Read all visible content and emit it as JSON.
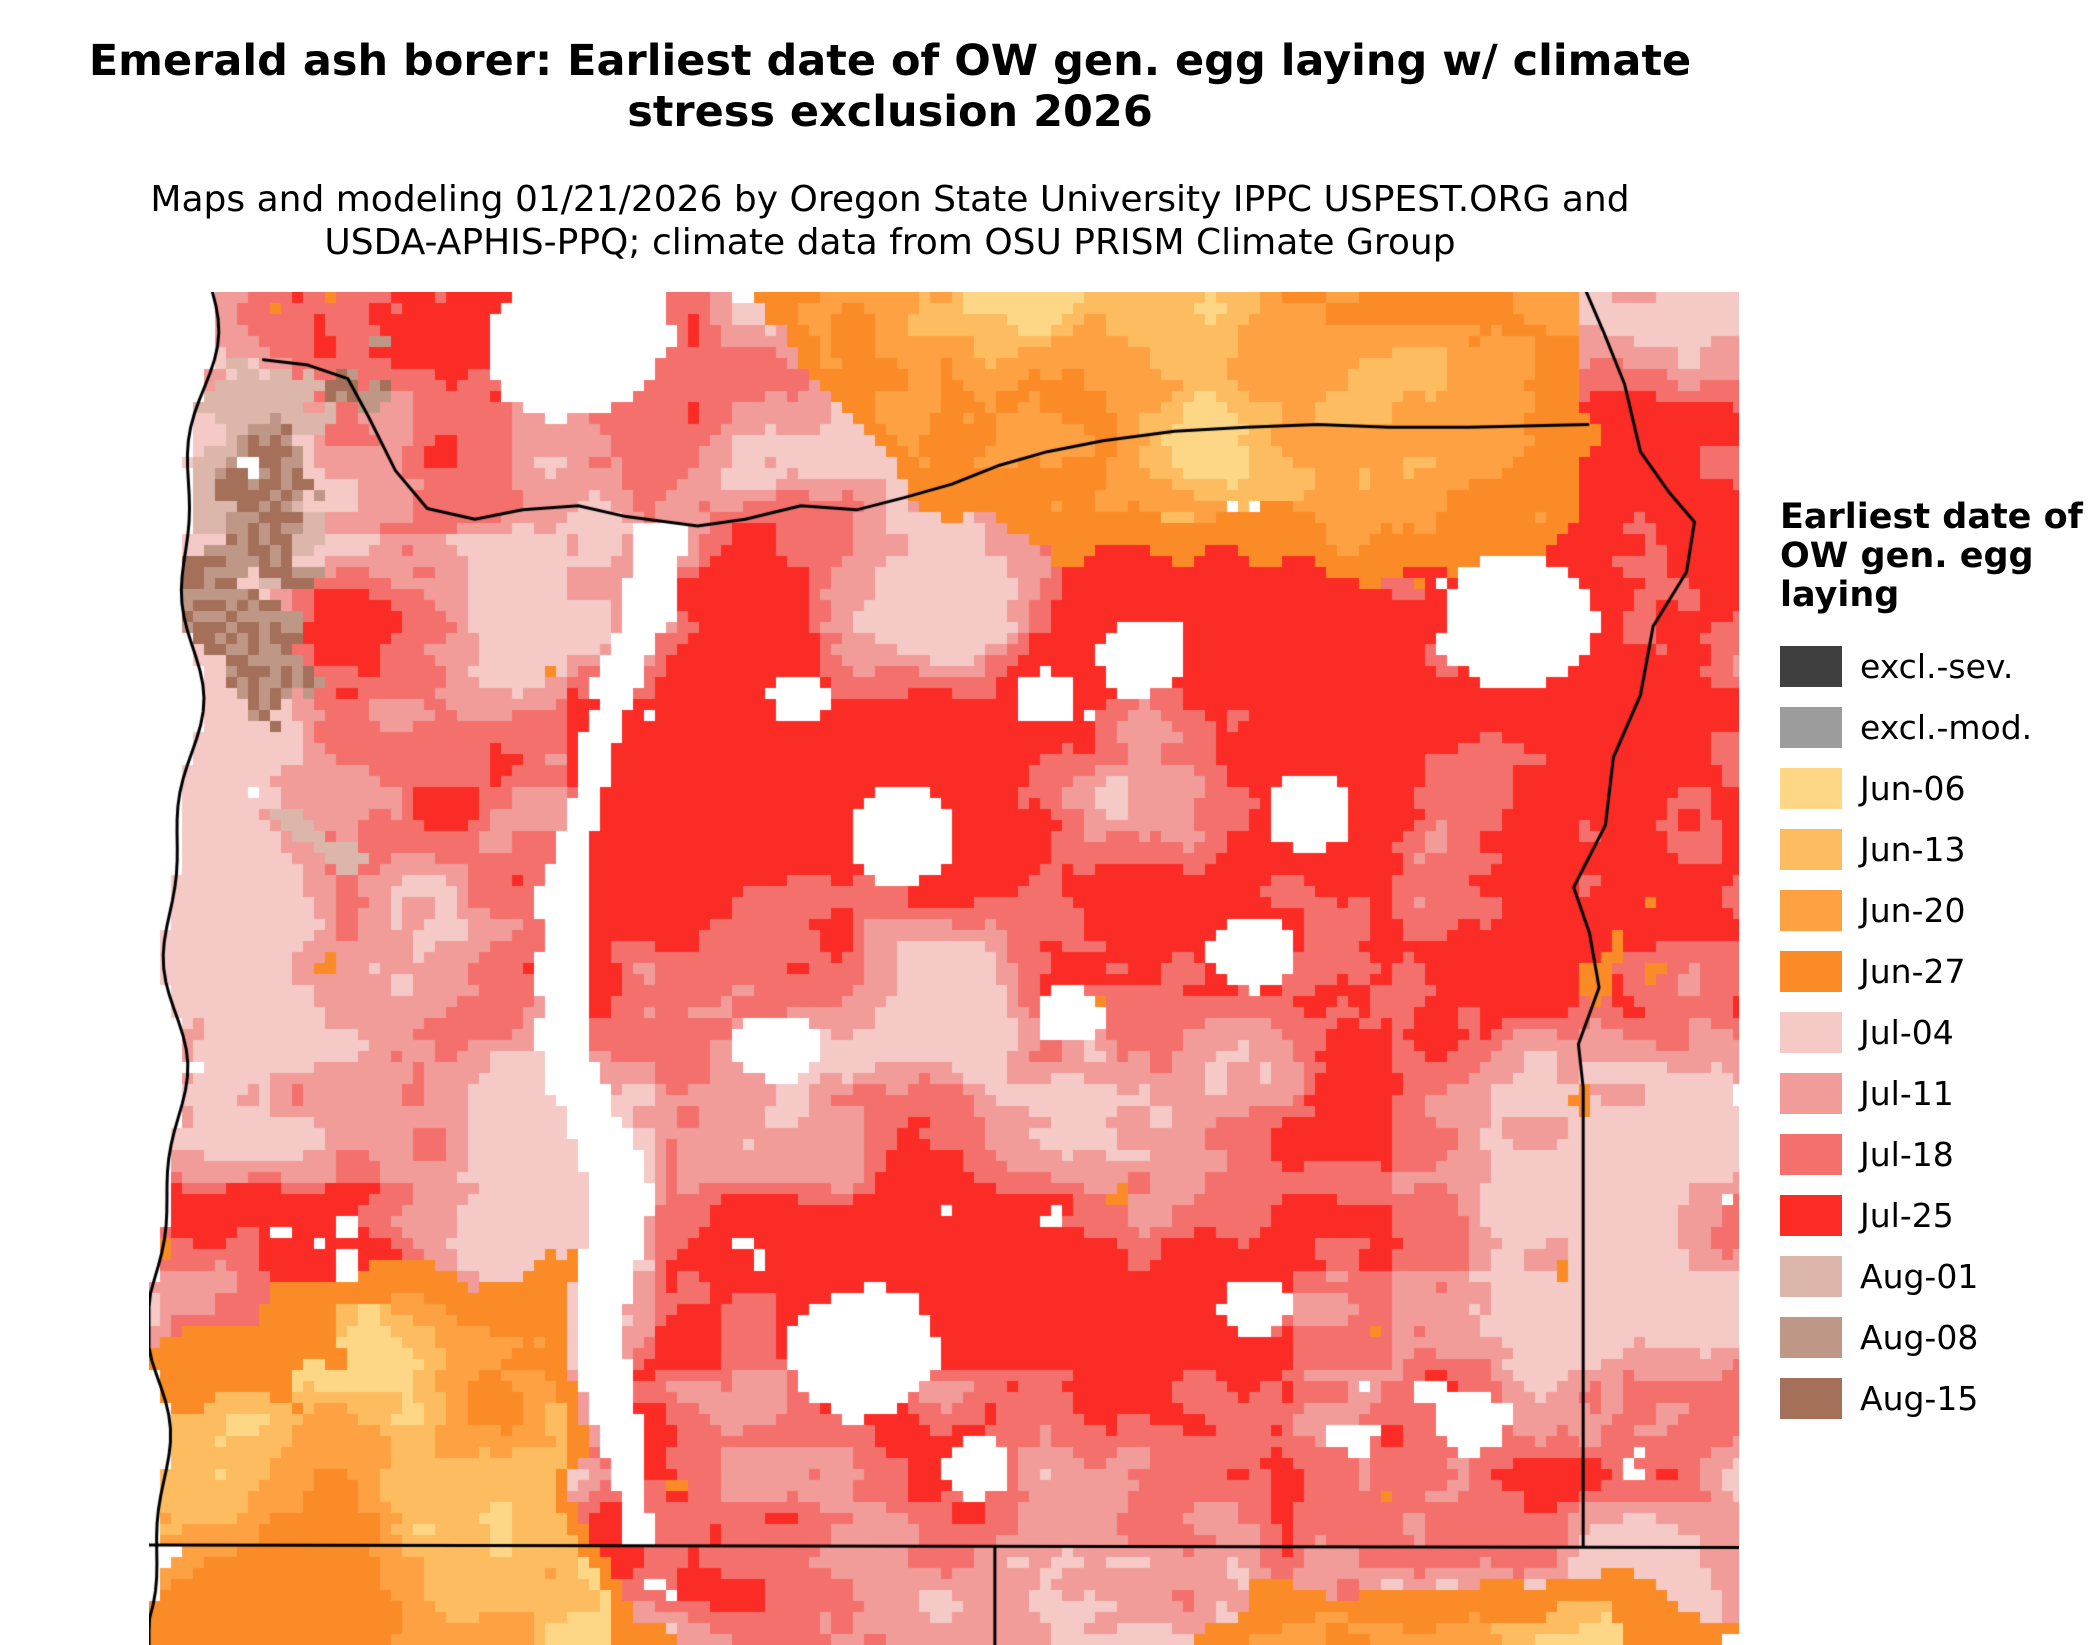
{
  "title": "Emerald ash borer: Earliest date of OW gen. egg laying w/ climate stress exclusion 2026",
  "subtitle": "Maps and modeling 01/21/2026 by Oregon State University IPPC USPEST.ORG and USDA-APHIS-PPQ; climate data from OSU PRISM Climate Group",
  "legend": {
    "title": "Earliest date of OW gen. egg laying",
    "items": [
      {
        "key": "excl_sev",
        "label": "excl.-sev.",
        "color": "#3f3f3f"
      },
      {
        "key": "excl_mod",
        "label": "excl.-mod.",
        "color": "#9c9c9c"
      },
      {
        "key": "jun06",
        "label": "Jun-06",
        "color": "#fdd786"
      },
      {
        "key": "jun13",
        "label": "Jun-13",
        "color": "#fdbc60"
      },
      {
        "key": "jun20",
        "label": "Jun-20",
        "color": "#fda143"
      },
      {
        "key": "jun27",
        "label": "Jun-27",
        "color": "#fb8b26"
      },
      {
        "key": "jul04",
        "label": "Jul-04",
        "color": "#f5c9c6"
      },
      {
        "key": "jul11",
        "label": "Jul-11",
        "color": "#f19c99"
      },
      {
        "key": "jul18",
        "label": "Jul-18",
        "color": "#f4706c"
      },
      {
        "key": "jul25",
        "label": "Jul-25",
        "color": "#fb2b25"
      },
      {
        "key": "aug01",
        "label": "Aug-01",
        "color": "#dcb6aa"
      },
      {
        "key": "aug08",
        "label": "Aug-08",
        "color": "#bf9787"
      },
      {
        "key": "aug15",
        "label": "Aug-15",
        "color": "#a5705a"
      }
    ]
  },
  "map": {
    "border_color": "#000000",
    "excluded_color": "#ffffff"
  }
}
